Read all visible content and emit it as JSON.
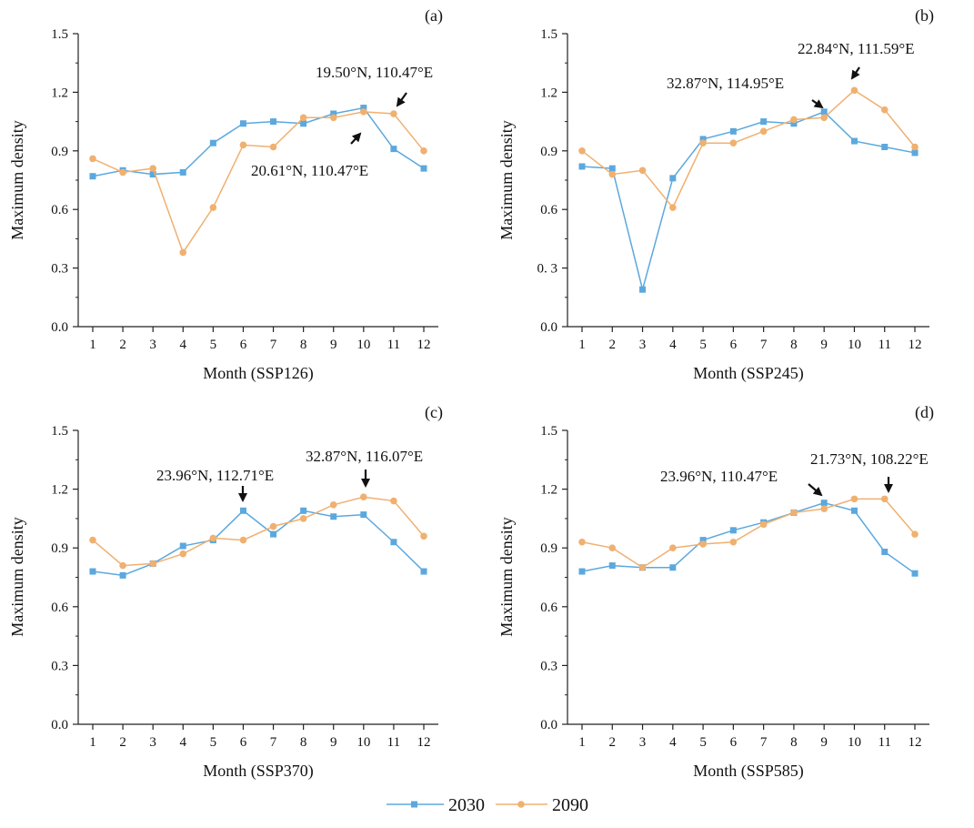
{
  "colors": {
    "series_2030": "#5ba8de",
    "series_2090": "#f0b070",
    "axis": "#222222",
    "arrow": "#111111"
  },
  "legend": {
    "entries": [
      "2030",
      "2090"
    ]
  },
  "chart_data": [
    {
      "type": "line",
      "panel_label": "(a)",
      "xlabel": "Month (SSP126)",
      "ylabel": "Maximum density",
      "x": [
        1,
        2,
        3,
        4,
        5,
        6,
        7,
        8,
        9,
        10,
        11,
        12
      ],
      "xticks": [
        "1",
        "2",
        "3",
        "4",
        "5",
        "6",
        "7",
        "8",
        "9",
        "10",
        "11",
        "12"
      ],
      "ylim": [
        0,
        1.5
      ],
      "yticks": [
        "0.0",
        "0.3",
        "0.6",
        "0.9",
        "1.2",
        "1.5"
      ],
      "series": [
        {
          "name": "2030",
          "marker": "square",
          "values": [
            0.77,
            0.8,
            0.78,
            0.79,
            0.94,
            1.04,
            1.05,
            1.04,
            1.09,
            1.12,
            0.91,
            0.81
          ]
        },
        {
          "name": "2090",
          "marker": "circle",
          "values": [
            0.86,
            0.79,
            0.81,
            0.38,
            0.61,
            0.93,
            0.92,
            1.07,
            1.07,
            1.1,
            1.09,
            0.9
          ]
        }
      ],
      "annotations": [
        {
          "text": "19.50°N, 110.47°E",
          "month": 11,
          "series": "2090",
          "arrow": "down-left"
        },
        {
          "text": "20.61°N, 110.47°E",
          "month": 10,
          "series": "2030",
          "arrow": "up-right"
        }
      ]
    },
    {
      "type": "line",
      "panel_label": "(b)",
      "xlabel": "Month (SSP245)",
      "ylabel": "Maximum density",
      "x": [
        1,
        2,
        3,
        4,
        5,
        6,
        7,
        8,
        9,
        10,
        11,
        12
      ],
      "xticks": [
        "1",
        "2",
        "3",
        "4",
        "5",
        "6",
        "7",
        "8",
        "9",
        "10",
        "11",
        "12"
      ],
      "ylim": [
        0,
        1.5
      ],
      "yticks": [
        "0.0",
        "0. 3",
        "0.6",
        "0.9",
        "1.2",
        "1.5"
      ],
      "series": [
        {
          "name": "2030",
          "marker": "square",
          "values": [
            0.82,
            0.81,
            0.19,
            0.76,
            0.96,
            1.0,
            1.05,
            1.04,
            1.1,
            0.95,
            0.92,
            0.89
          ]
        },
        {
          "name": "2090",
          "marker": "circle",
          "values": [
            0.9,
            0.78,
            0.8,
            0.61,
            0.94,
            0.94,
            1.0,
            1.06,
            1.07,
            1.21,
            1.11,
            0.92
          ]
        }
      ],
      "annotations": [
        {
          "text": "32.87°N, 114.95°E",
          "month": 9,
          "series": "2030",
          "arrow": "down-right"
        },
        {
          "text": "22.84°N, 111.59°E",
          "month": 10,
          "series": "2090",
          "arrow": "down-left"
        }
      ]
    },
    {
      "type": "line",
      "panel_label": "(c)",
      "xlabel": "Month (SSP370)",
      "ylabel": "Maximum density",
      "x": [
        1,
        2,
        3,
        4,
        5,
        6,
        7,
        8,
        9,
        10,
        11,
        12
      ],
      "xticks": [
        "1",
        "2",
        "3",
        "4",
        "5",
        "6",
        "7",
        "8",
        "9",
        "10",
        "11",
        "12"
      ],
      "ylim": [
        0,
        1.5
      ],
      "yticks": [
        "0.0",
        "0.3",
        "0.6",
        "0.9",
        "1.2",
        "1.5"
      ],
      "series": [
        {
          "name": "2030",
          "marker": "square",
          "values": [
            0.78,
            0.76,
            0.82,
            0.91,
            0.94,
            1.09,
            0.97,
            1.09,
            1.06,
            1.07,
            0.93,
            0.78
          ]
        },
        {
          "name": "2090",
          "marker": "circle",
          "values": [
            0.94,
            0.81,
            0.82,
            0.87,
            0.95,
            0.94,
            1.01,
            1.05,
            1.12,
            1.16,
            1.14,
            0.96
          ]
        }
      ],
      "annotations": [
        {
          "text": "23.96°N, 112.71°E",
          "month": 6,
          "series": "2030",
          "arrow": "down"
        },
        {
          "text": "32.87°N, 116.07°E",
          "month": 10,
          "series": "2090",
          "arrow": "down"
        }
      ]
    },
    {
      "type": "line",
      "panel_label": "(d)",
      "xlabel": "Month (SSP585)",
      "ylabel": "Maximum density",
      "x": [
        1,
        2,
        3,
        4,
        5,
        6,
        7,
        8,
        9,
        10,
        11,
        12
      ],
      "xticks": [
        "1",
        "2",
        "3",
        "4",
        "5",
        "6",
        "7",
        "8",
        "9",
        "10",
        "11",
        "12"
      ],
      "ylim": [
        0,
        1.5
      ],
      "yticks": [
        "0.0",
        "0.3",
        "0.6",
        "0.9",
        "1.2",
        "1.5"
      ],
      "series": [
        {
          "name": "2030",
          "marker": "square",
          "values": [
            0.78,
            0.81,
            0.8,
            0.8,
            0.94,
            0.99,
            1.03,
            1.08,
            1.13,
            1.09,
            0.88,
            0.77
          ]
        },
        {
          "name": "2090",
          "marker": "circle",
          "values": [
            0.93,
            0.9,
            0.8,
            0.9,
            0.92,
            0.93,
            1.02,
            1.08,
            1.1,
            1.15,
            1.15,
            0.97
          ]
        }
      ],
      "annotations": [
        {
          "text": "23.96°N, 110.47°E",
          "month": 9,
          "series": "2030",
          "arrow": "down-right"
        },
        {
          "text": "21.73°N, 108.22°E",
          "month": 11,
          "series": "2090",
          "arrow": "down"
        }
      ]
    }
  ]
}
